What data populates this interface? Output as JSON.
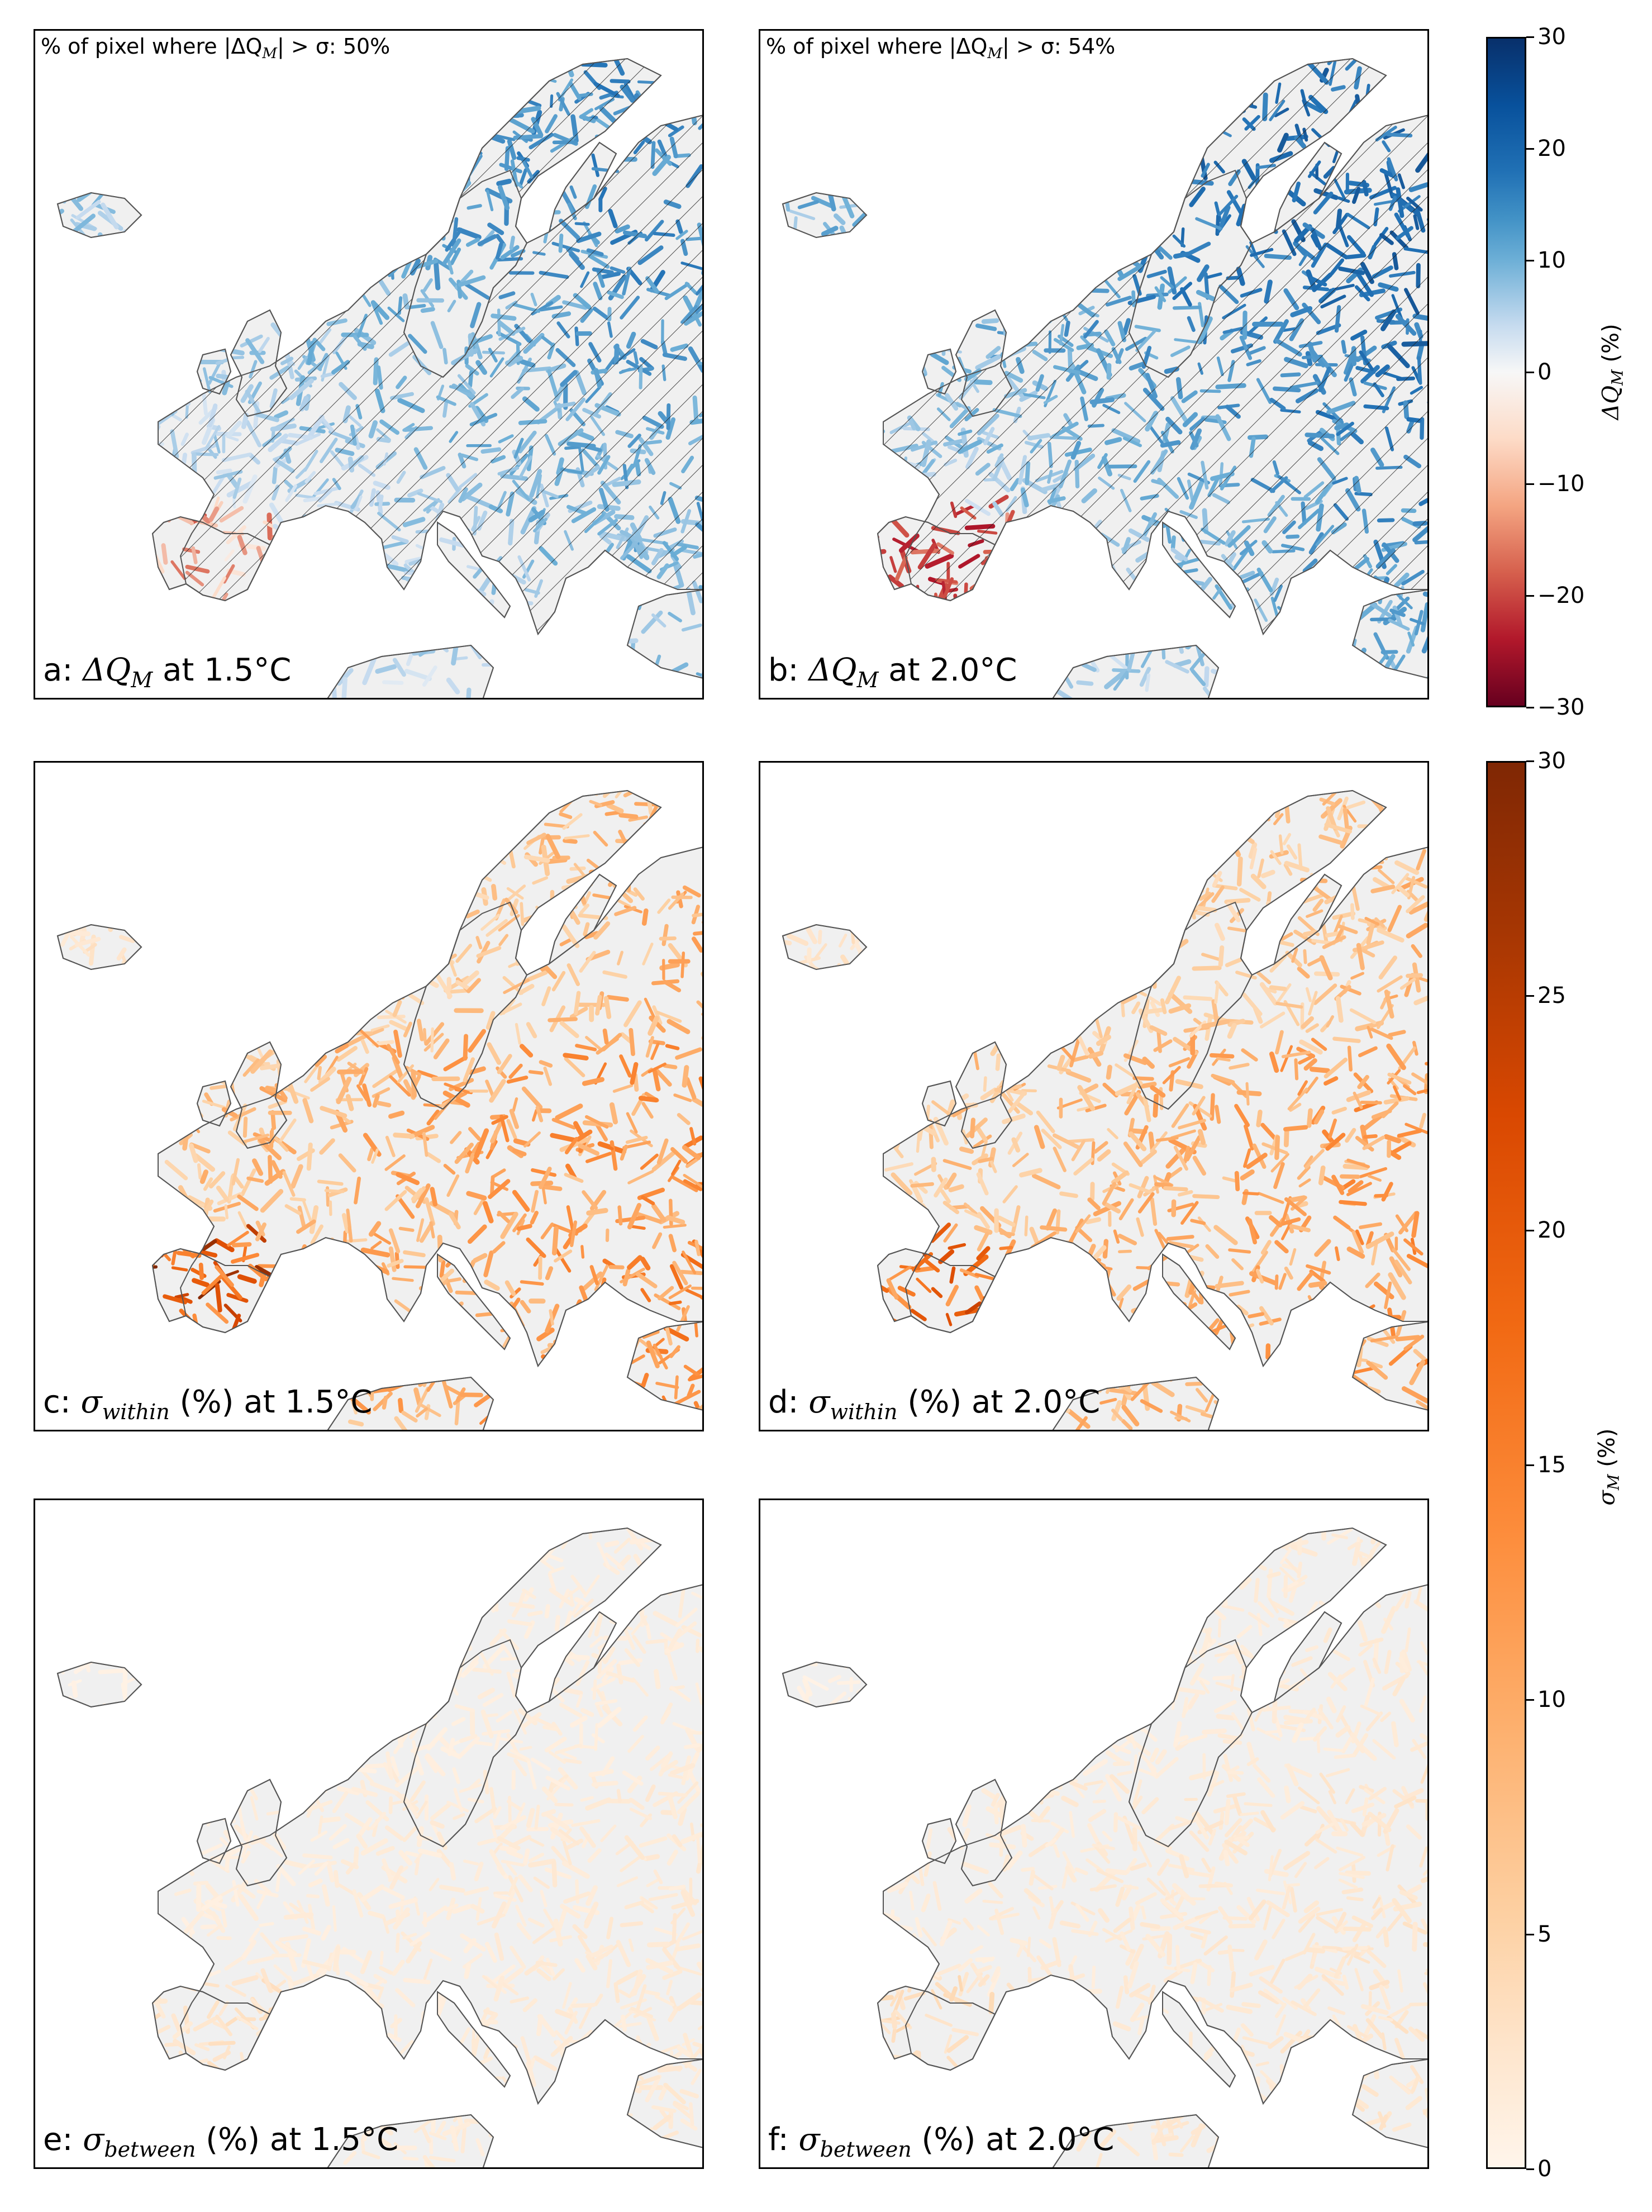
{
  "panels": [
    {
      "id": "a",
      "prefix": "a: ",
      "symbol": "ΔQ",
      "sub": "M",
      "suffix": " at 1.5°C",
      "note": {
        "prefix": "% of pixel where |ΔQ",
        "sub": "M",
        "mid": "| > σ: ",
        "value": "50%"
      },
      "colormap": "RdBu",
      "intensity": 0.55,
      "south_drying": 0.35,
      "hatched": true
    },
    {
      "id": "b",
      "prefix": "b: ",
      "symbol": "ΔQ",
      "sub": "M",
      "suffix": " at 2.0°C",
      "note": {
        "prefix": "% of pixel where |ΔQ",
        "sub": "M",
        "mid": "| > σ: ",
        "value": "54%"
      },
      "colormap": "RdBu",
      "intensity": 0.7,
      "south_drying": 0.75,
      "hatched": true
    },
    {
      "id": "c",
      "prefix": "c: ",
      "symbol": "σ",
      "sub": "within",
      "suffix": " (%) at 1.5°C",
      "colormap": "Oranges",
      "intensity": 0.6
    },
    {
      "id": "d",
      "prefix": "d: ",
      "symbol": "σ",
      "sub": "within",
      "suffix": " (%) at 2.0°C",
      "colormap": "Oranges",
      "intensity": 0.55
    },
    {
      "id": "e",
      "prefix": "e: ",
      "symbol": "σ",
      "sub": "between",
      "suffix": " (%) at 1.5°C",
      "colormap": "Oranges",
      "intensity": 0.12
    },
    {
      "id": "f",
      "prefix": "f: ",
      "symbol": "σ",
      "sub": "between",
      "suffix": " (%) at 2.0°C",
      "colormap": "Oranges",
      "intensity": 0.15
    }
  ],
  "colorbars": [
    {
      "id": "delta",
      "symbol": "ΔQ",
      "sub": "M",
      "unit": " (%)",
      "ticks": [
        "30",
        "20",
        "10",
        "0",
        "−10",
        "−20",
        "−30"
      ],
      "min": -30,
      "max": 30
    },
    {
      "id": "sigma",
      "symbol": "σ",
      "sub": "M",
      "unit": " (%)",
      "ticks": [
        "30",
        "25",
        "20",
        "15",
        "10",
        "5",
        "0"
      ],
      "min": 0,
      "max": 30
    }
  ],
  "colors": {
    "land": "#f0f0f0",
    "coast": "#555555",
    "frame": "#000000"
  }
}
